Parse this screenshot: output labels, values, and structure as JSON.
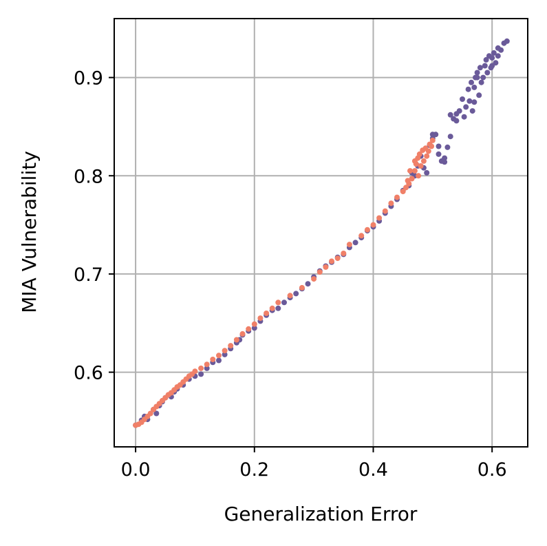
{
  "chart_data": {
    "type": "scatter",
    "xlabel": "Generalization Error",
    "ylabel": "MIA Vulnerability",
    "xlim": [
      -0.036,
      0.66
    ],
    "ylim": [
      0.524,
      0.96
    ],
    "grid": true,
    "xticks": [
      {
        "value": 0.0,
        "label": "0.0"
      },
      {
        "value": 0.2,
        "label": "0.2"
      },
      {
        "value": 0.4,
        "label": "0.4"
      },
      {
        "value": 0.6,
        "label": "0.6"
      }
    ],
    "yticks": [
      {
        "value": 0.6,
        "label": "0.6"
      },
      {
        "value": 0.7,
        "label": "0.7"
      },
      {
        "value": 0.8,
        "label": "0.8"
      },
      {
        "value": 0.9,
        "label": "0.9"
      }
    ],
    "series": [
      {
        "color": "#6a5a99",
        "points": [
          [
            0.0,
            0.546
          ],
          [
            0.01,
            0.551
          ],
          [
            0.015,
            0.555
          ],
          [
            0.02,
            0.552
          ],
          [
            0.03,
            0.562
          ],
          [
            0.035,
            0.558
          ],
          [
            0.04,
            0.566
          ],
          [
            0.045,
            0.57
          ],
          [
            0.05,
            0.574
          ],
          [
            0.06,
            0.575
          ],
          [
            0.065,
            0.58
          ],
          [
            0.07,
            0.583
          ],
          [
            0.08,
            0.587
          ],
          [
            0.09,
            0.593
          ],
          [
            0.1,
            0.596
          ],
          [
            0.11,
            0.598
          ],
          [
            0.12,
            0.604
          ],
          [
            0.13,
            0.61
          ],
          [
            0.14,
            0.612
          ],
          [
            0.15,
            0.618
          ],
          [
            0.16,
            0.624
          ],
          [
            0.17,
            0.63
          ],
          [
            0.175,
            0.633
          ],
          [
            0.18,
            0.638
          ],
          [
            0.19,
            0.642
          ],
          [
            0.2,
            0.645
          ],
          [
            0.21,
            0.652
          ],
          [
            0.22,
            0.658
          ],
          [
            0.23,
            0.663
          ],
          [
            0.24,
            0.665
          ],
          [
            0.25,
            0.671
          ],
          [
            0.26,
            0.676
          ],
          [
            0.27,
            0.68
          ],
          [
            0.28,
            0.685
          ],
          [
            0.29,
            0.69
          ],
          [
            0.3,
            0.697
          ],
          [
            0.31,
            0.703
          ],
          [
            0.32,
            0.708
          ],
          [
            0.33,
            0.712
          ],
          [
            0.34,
            0.717
          ],
          [
            0.35,
            0.72
          ],
          [
            0.36,
            0.727
          ],
          [
            0.37,
            0.732
          ],
          [
            0.38,
            0.737
          ],
          [
            0.39,
            0.744
          ],
          [
            0.4,
            0.748
          ],
          [
            0.41,
            0.754
          ],
          [
            0.42,
            0.762
          ],
          [
            0.43,
            0.769
          ],
          [
            0.44,
            0.776
          ],
          [
            0.45,
            0.785
          ],
          [
            0.46,
            0.79
          ],
          [
            0.465,
            0.803
          ],
          [
            0.47,
            0.8
          ],
          [
            0.475,
            0.81
          ],
          [
            0.48,
            0.82
          ],
          [
            0.485,
            0.808
          ],
          [
            0.49,
            0.803
          ],
          [
            0.495,
            0.831
          ],
          [
            0.5,
            0.838
          ],
          [
            0.505,
            0.842
          ],
          [
            0.51,
            0.822
          ],
          [
            0.515,
            0.815
          ],
          [
            0.52,
            0.818
          ],
          [
            0.525,
            0.829
          ],
          [
            0.53,
            0.84
          ],
          [
            0.535,
            0.858
          ],
          [
            0.54,
            0.863
          ],
          [
            0.545,
            0.866
          ],
          [
            0.55,
            0.878
          ],
          [
            0.553,
            0.86
          ],
          [
            0.556,
            0.87
          ],
          [
            0.56,
            0.888
          ],
          [
            0.562,
            0.876
          ],
          [
            0.565,
            0.895
          ],
          [
            0.567,
            0.866
          ],
          [
            0.57,
            0.89
          ],
          [
            0.572,
            0.9
          ],
          [
            0.575,
            0.905
          ],
          [
            0.578,
            0.882
          ],
          [
            0.58,
            0.91
          ],
          [
            0.582,
            0.895
          ],
          [
            0.585,
            0.9
          ],
          [
            0.588,
            0.912
          ],
          [
            0.59,
            0.918
          ],
          [
            0.592,
            0.905
          ],
          [
            0.595,
            0.922
          ],
          [
            0.598,
            0.91
          ],
          [
            0.6,
            0.92
          ],
          [
            0.603,
            0.925
          ],
          [
            0.606,
            0.915
          ],
          [
            0.61,
            0.93
          ],
          [
            0.615,
            0.928
          ],
          [
            0.62,
            0.935
          ],
          [
            0.625,
            0.937
          ],
          [
            0.5,
            0.842
          ],
          [
            0.51,
            0.83
          ],
          [
            0.52,
            0.814
          ],
          [
            0.53,
            0.862
          ],
          [
            0.54,
            0.856
          ],
          [
            0.57,
            0.875
          ],
          [
            0.575,
            0.9
          ],
          [
            0.6,
            0.912
          ],
          [
            0.61,
            0.922
          ]
        ]
      },
      {
        "color": "#f08068",
        "points": [
          [
            0.0,
            0.546
          ],
          [
            0.005,
            0.547
          ],
          [
            0.01,
            0.549
          ],
          [
            0.015,
            0.552
          ],
          [
            0.02,
            0.555
          ],
          [
            0.025,
            0.558
          ],
          [
            0.03,
            0.562
          ],
          [
            0.035,
            0.565
          ],
          [
            0.04,
            0.568
          ],
          [
            0.045,
            0.571
          ],
          [
            0.05,
            0.574
          ],
          [
            0.055,
            0.577
          ],
          [
            0.06,
            0.579
          ],
          [
            0.065,
            0.582
          ],
          [
            0.07,
            0.585
          ],
          [
            0.075,
            0.587
          ],
          [
            0.08,
            0.59
          ],
          [
            0.085,
            0.593
          ],
          [
            0.09,
            0.596
          ],
          [
            0.095,
            0.598
          ],
          [
            0.1,
            0.601
          ],
          [
            0.11,
            0.604
          ],
          [
            0.12,
            0.608
          ],
          [
            0.13,
            0.613
          ],
          [
            0.14,
            0.617
          ],
          [
            0.15,
            0.622
          ],
          [
            0.16,
            0.627
          ],
          [
            0.17,
            0.633
          ],
          [
            0.18,
            0.639
          ],
          [
            0.19,
            0.644
          ],
          [
            0.2,
            0.649
          ],
          [
            0.21,
            0.655
          ],
          [
            0.22,
            0.66
          ],
          [
            0.23,
            0.665
          ],
          [
            0.24,
            0.671
          ],
          [
            0.26,
            0.678
          ],
          [
            0.28,
            0.686
          ],
          [
            0.3,
            0.695
          ],
          [
            0.31,
            0.702
          ],
          [
            0.32,
            0.707
          ],
          [
            0.33,
            0.713
          ],
          [
            0.34,
            0.716
          ],
          [
            0.35,
            0.721
          ],
          [
            0.36,
            0.73
          ],
          [
            0.38,
            0.739
          ],
          [
            0.39,
            0.745
          ],
          [
            0.4,
            0.75
          ],
          [
            0.41,
            0.757
          ],
          [
            0.42,
            0.764
          ],
          [
            0.43,
            0.772
          ],
          [
            0.44,
            0.778
          ],
          [
            0.45,
            0.784
          ],
          [
            0.455,
            0.788
          ],
          [
            0.46,
            0.792
          ],
          [
            0.465,
            0.797
          ],
          [
            0.47,
            0.805
          ],
          [
            0.472,
            0.812
          ],
          [
            0.475,
            0.818
          ],
          [
            0.478,
            0.822
          ],
          [
            0.48,
            0.81
          ],
          [
            0.483,
            0.826
          ],
          [
            0.485,
            0.815
          ],
          [
            0.488,
            0.828
          ],
          [
            0.49,
            0.82
          ],
          [
            0.493,
            0.825
          ],
          [
            0.495,
            0.832
          ],
          [
            0.498,
            0.83
          ],
          [
            0.5,
            0.836
          ],
          [
            0.47,
            0.815
          ],
          [
            0.476,
            0.8
          ],
          [
            0.462,
            0.805
          ],
          [
            0.458,
            0.795
          ]
        ]
      }
    ]
  }
}
